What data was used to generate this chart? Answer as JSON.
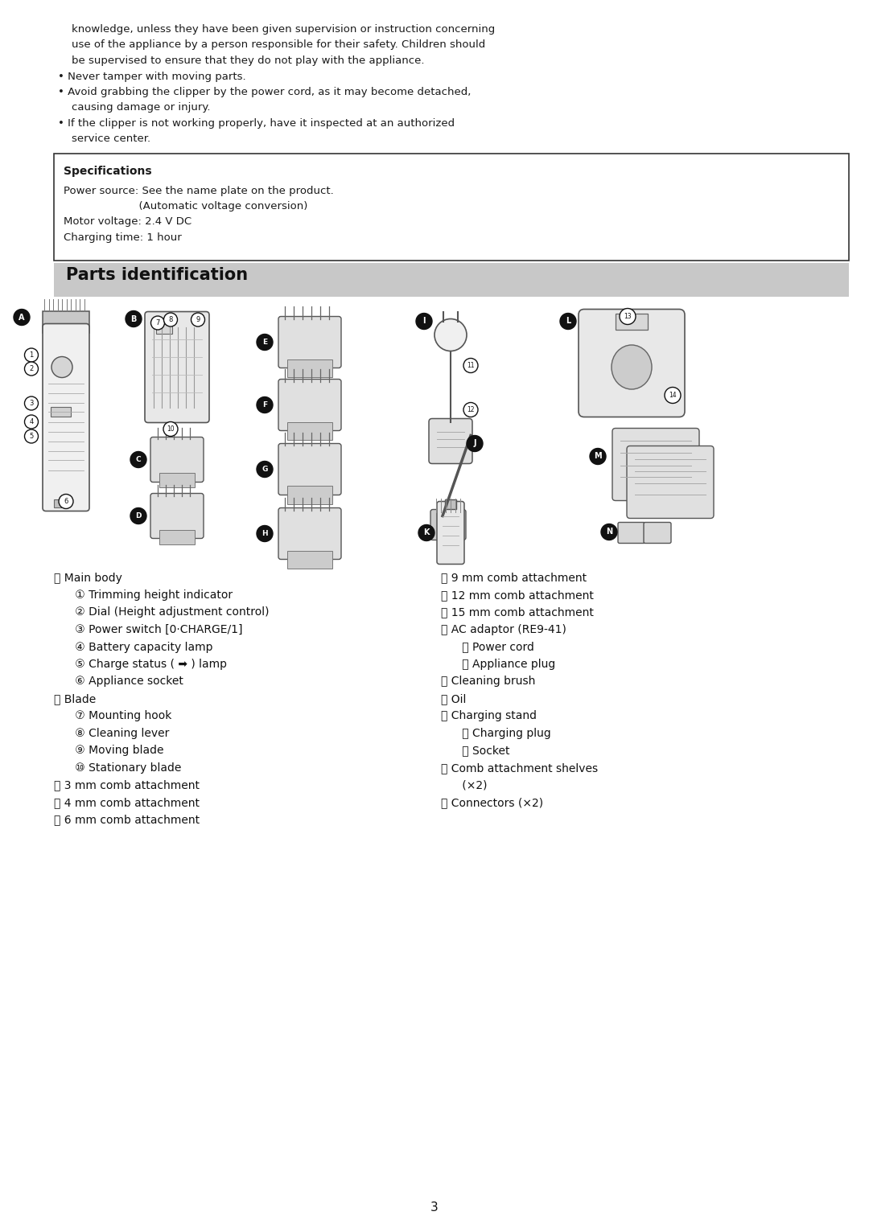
{
  "bg_color": "#ffffff",
  "page_width": 10.8,
  "page_height": 15.22,
  "top_text_lines": [
    "    knowledge, unless they have been given supervision or instruction concerning",
    "    use of the appliance by a person responsible for their safety. Children should",
    "    be supervised to ensure that they do not play with the appliance.",
    "• Never tamper with moving parts.",
    "• Avoid grabbing the clipper by the power cord, as it may become detached,",
    "    causing damage or injury.",
    "• If the clipper is not working properly, have it inspected at an authorized",
    "    service center."
  ],
  "specs_title": "Specifications",
  "specs_lines": [
    "Power source: See the name plate on the product.",
    "                      (Automatic voltage conversion)",
    "Motor voltage: 2.4 V DC",
    "Charging time: 1 hour"
  ],
  "section_title": "Parts identification",
  "section_bg": "#c8c8c8",
  "left_col_lines": [
    "Ⓐ Main body",
    "      ① Trimming height indicator",
    "      ② Dial (Height adjustment control)",
    "      ③ Power switch [0·CHARGE/1]",
    "      ④ Battery capacity lamp",
    "      ⑤ Charge status ( ➡ ) lamp",
    "      ⑥ Appliance socket",
    "Ⓑ Blade",
    "      ⑦ Mounting hook",
    "      ⑧ Cleaning lever",
    "      ⑨ Moving blade",
    "      ⑩ Stationary blade",
    "Ⓒ 3 mm comb attachment",
    "Ⓓ 4 mm comb attachment",
    "Ⓔ 6 mm comb attachment"
  ],
  "right_col_lines": [
    "Ⓕ 9 mm comb attachment",
    "Ⓖ 12 mm comb attachment",
    "Ⓗ 15 mm comb attachment",
    "Ⓘ AC adaptor (RE9-41)",
    "      ⑪ Power cord",
    "      ⑫ Appliance plug",
    "Ⓙ Cleaning brush",
    "Ⓚ Oil",
    "Ⓛ Charging stand",
    "      ⑬ Charging plug",
    "      ⑭ Socket",
    "Ⓜ Comb attachment shelves",
    "      (×2)",
    "Ⓝ Connectors (×2)"
  ],
  "page_num": "3"
}
